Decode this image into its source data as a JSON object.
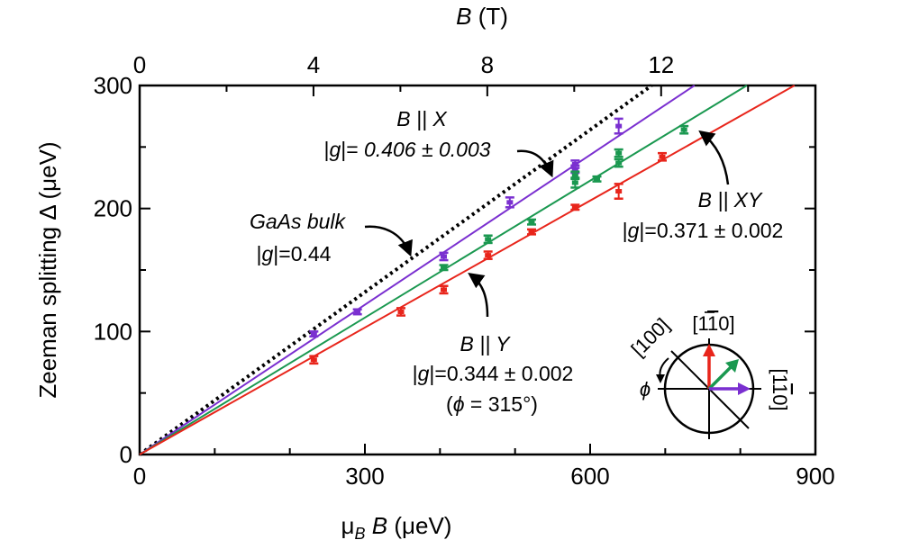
{
  "chart_data": {
    "type": "scatter",
    "x_axis": {
      "label_main": "μ",
      "label_sub": "B",
      "label_var": "B",
      "label_unit": "(μeV)",
      "range": [
        0,
        900
      ],
      "ticks": [
        "0",
        "300",
        "600",
        "900"
      ],
      "tick_values": [
        0,
        300,
        600,
        900
      ]
    },
    "top_axis": {
      "label_var": "B",
      "label_unit": "(T)",
      "range_tesla": [
        0,
        15.55
      ],
      "ticks": [
        "0",
        "4",
        "8",
        "12"
      ],
      "tick_values": [
        0,
        4,
        8,
        12
      ]
    },
    "y_axis": {
      "label": "Zeeman splitting Δ (μeV)",
      "range": [
        0,
        300
      ],
      "ticks": [
        "0",
        "100",
        "200",
        "300"
      ],
      "tick_values": [
        0,
        100,
        200,
        300
      ]
    },
    "series": [
      {
        "key": "x",
        "color": "#7a2fd0",
        "g": 0.406,
        "points": [
          {
            "x": 232,
            "y": 98,
            "err": 2
          },
          {
            "x": 290,
            "y": 116,
            "err": 2
          },
          {
            "x": 405,
            "y": 161,
            "err": 3
          },
          {
            "x": 493,
            "y": 205,
            "err": 4
          },
          {
            "x": 580,
            "y": 232,
            "err": 3
          },
          {
            "x": 580,
            "y": 236,
            "err": 3
          },
          {
            "x": 638,
            "y": 267,
            "err": 6
          }
        ]
      },
      {
        "key": "xy",
        "color": "#1a9850",
        "g": 0.371,
        "points": [
          {
            "x": 405,
            "y": 152,
            "err": 2
          },
          {
            "x": 464,
            "y": 175,
            "err": 3
          },
          {
            "x": 522,
            "y": 189,
            "err": 2
          },
          {
            "x": 580,
            "y": 221,
            "err": 4
          },
          {
            "x": 580,
            "y": 227,
            "err": 3
          },
          {
            "x": 609,
            "y": 224,
            "err": 2
          },
          {
            "x": 638,
            "y": 237,
            "err": 3
          },
          {
            "x": 638,
            "y": 245,
            "err": 3
          },
          {
            "x": 725,
            "y": 264,
            "err": 3
          }
        ]
      },
      {
        "key": "y",
        "color": "#e8251b",
        "g": 0.344,
        "points": [
          {
            "x": 232,
            "y": 77,
            "err": 3
          },
          {
            "x": 348,
            "y": 116,
            "err": 3
          },
          {
            "x": 405,
            "y": 134,
            "err": 3
          },
          {
            "x": 464,
            "y": 162,
            "err": 3
          },
          {
            "x": 522,
            "y": 181,
            "err": 2
          },
          {
            "x": 580,
            "y": 201,
            "err": 2
          },
          {
            "x": 638,
            "y": 214,
            "err": 6
          },
          {
            "x": 696,
            "y": 242,
            "err": 3
          }
        ]
      }
    ],
    "reference_line": {
      "key": "gaas",
      "g": 0.44,
      "style": "dotted",
      "color": "#000000"
    },
    "annotations": {
      "x": {
        "l1_var": "B",
        "l1_rest": " || X",
        "l2_a": "|",
        "l2_g": "g",
        "l2_b": "|= ",
        "l2_val": "0.406 ± 0.003"
      },
      "xy": {
        "l1_var": "B",
        "l1_rest": " || XY",
        "l2_a": "|",
        "l2_g": "g",
        "l2_b": "|=0.371 ± 0.002"
      },
      "y": {
        "l1_var": "B",
        "l1_rest": " || Y",
        "l2_a": "|",
        "l2_g": "g",
        "l2_b": "|=0.344 ± 0.002",
        "l3_a": "(",
        "l3_phi": "ϕ",
        "l3_b": " = 315°)"
      },
      "gaas": {
        "l1": "GaAs bulk",
        "l2_a": "|",
        "l2_g": "g",
        "l2_b": "|=0.44"
      }
    },
    "inset": {
      "label_100": "[100]",
      "label_1m10": "[1",
      "label_1m10_bar": "1",
      "label_1m10_end": "0]",
      "label_11bar0": "[1",
      "label_11bar0_bar": "1",
      "label_11bar0_end": "0]",
      "phi": "ϕ",
      "arrow_colors": [
        "#e8251b",
        "#1a9850",
        "#7a2fd0"
      ]
    }
  }
}
